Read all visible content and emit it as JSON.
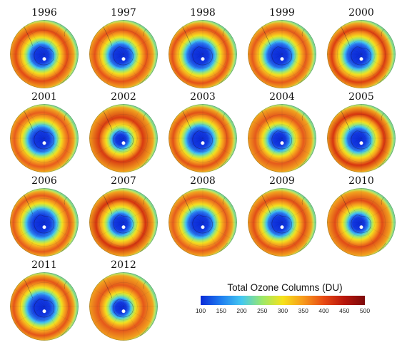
{
  "maps": [
    {
      "year": "1996",
      "hole": 0.36,
      "ring": "#e24a16"
    },
    {
      "year": "1997",
      "hole": 0.37,
      "ring": "#e55219"
    },
    {
      "year": "1998",
      "hole": 0.42,
      "ring": "#e4501a"
    },
    {
      "year": "1999",
      "hole": 0.4,
      "ring": "#e65a1c"
    },
    {
      "year": "2000",
      "hole": 0.39,
      "ring": "#dc3e12"
    },
    {
      "year": "2001",
      "hole": 0.4,
      "ring": "#e85c1d"
    },
    {
      "year": "2002",
      "hole": 0.26,
      "ring": "#d83b12"
    },
    {
      "year": "2003",
      "hole": 0.4,
      "ring": "#e15118"
    },
    {
      "year": "2004",
      "hole": 0.32,
      "ring": "#e55a1c"
    },
    {
      "year": "2005",
      "hole": 0.36,
      "ring": "#d63410"
    },
    {
      "year": "2006",
      "hole": 0.43,
      "ring": "#e55a1c"
    },
    {
      "year": "2007",
      "hole": 0.33,
      "ring": "#d33210"
    },
    {
      "year": "2008",
      "hole": 0.4,
      "ring": "#e65d1d"
    },
    {
      "year": "2009",
      "hole": 0.36,
      "ring": "#e24e18"
    },
    {
      "year": "2010",
      "hole": 0.3,
      "ring": "#e14b17"
    },
    {
      "year": "2011",
      "hole": 0.42,
      "ring": "#e45419"
    },
    {
      "year": "2012",
      "hole": 0.28,
      "ring": "#e5581b"
    }
  ],
  "colorbar": {
    "title": "Total Ozone Columns (DU)",
    "min": 100,
    "max": 500,
    "ticks": [
      "100",
      "150",
      "200",
      "250",
      "300",
      "350",
      "400",
      "450",
      "500"
    ],
    "colors": [
      "#0a2bd8",
      "#1f7ef0",
      "#44c8f0",
      "#9be86a",
      "#f6e21a",
      "#f79a1c",
      "#e84a14",
      "#b8160c",
      "#7c0a0a"
    ]
  }
}
